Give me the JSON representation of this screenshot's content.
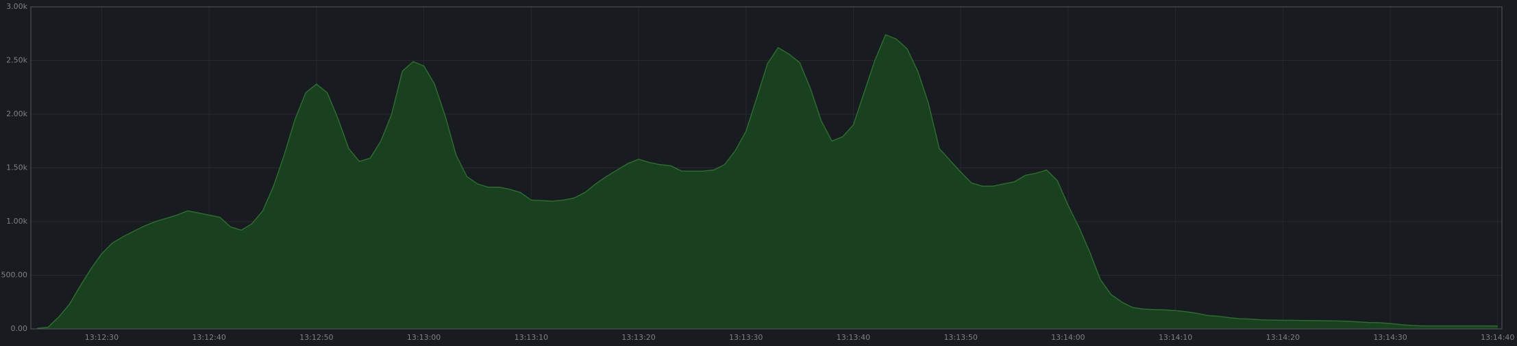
{
  "chart_data": {
    "type": "area",
    "x": [
      47544,
      47545,
      47546,
      47547,
      47548,
      47549,
      47550,
      47551,
      47552,
      47553,
      47554,
      47555,
      47556,
      47557,
      47558,
      47559,
      47560,
      47561,
      47562,
      47563,
      47564,
      47565,
      47566,
      47567,
      47568,
      47569,
      47570,
      47571,
      47572,
      47573,
      47574,
      47575,
      47576,
      47577,
      47578,
      47579,
      47580,
      47581,
      47582,
      47583,
      47584,
      47585,
      47586,
      47587,
      47588,
      47589,
      47590,
      47591,
      47592,
      47593,
      47594,
      47595,
      47596,
      47597,
      47598,
      47599,
      47600,
      47601,
      47602,
      47603,
      47604,
      47605,
      47606,
      47607,
      47608,
      47609,
      47610,
      47611,
      47612,
      47613,
      47614,
      47615,
      47616,
      47617,
      47618,
      47619,
      47620,
      47621,
      47622,
      47623,
      47624,
      47625,
      47626,
      47627,
      47628,
      47629,
      47630,
      47631,
      47632,
      47633,
      47634,
      47635,
      47636,
      47637,
      47638,
      47639,
      47640,
      47641,
      47642,
      47643,
      47644,
      47645,
      47646,
      47647,
      47648,
      47649,
      47650,
      47651,
      47652,
      47653,
      47654,
      47655,
      47656,
      47657,
      47658,
      47659,
      47660,
      47661,
      47662,
      47663,
      47664,
      47665,
      47666,
      47667,
      47668,
      47669,
      47670,
      47671,
      47672,
      47673,
      47674,
      47675,
      47676,
      47677,
      47678,
      47679,
      47680
    ],
    "values": [
      5,
      15,
      110,
      230,
      400,
      560,
      700,
      800,
      860,
      910,
      960,
      1000,
      1030,
      1060,
      1100,
      1080,
      1060,
      1040,
      950,
      920,
      980,
      1100,
      1330,
      1620,
      1950,
      2200,
      2280,
      2200,
      1960,
      1680,
      1560,
      1590,
      1750,
      2000,
      2400,
      2490,
      2450,
      2280,
      1980,
      1620,
      1420,
      1350,
      1320,
      1320,
      1300,
      1270,
      1200,
      1195,
      1190,
      1200,
      1220,
      1270,
      1350,
      1420,
      1480,
      1540,
      1580,
      1550,
      1530,
      1520,
      1470,
      1470,
      1470,
      1480,
      1530,
      1660,
      1840,
      2150,
      2470,
      2620,
      2560,
      2480,
      2240,
      1940,
      1750,
      1790,
      1900,
      2200,
      2500,
      2740,
      2700,
      2610,
      2400,
      2100,
      1680,
      1570,
      1460,
      1360,
      1330,
      1330,
      1350,
      1370,
      1430,
      1450,
      1480,
      1380,
      1150,
      950,
      720,
      460,
      320,
      250,
      200,
      185,
      180,
      178,
      170,
      160,
      145,
      125,
      118,
      105,
      95,
      92,
      85,
      82,
      80,
      80,
      78,
      77,
      76,
      74,
      72,
      65,
      60,
      58,
      50,
      40,
      32,
      28,
      28,
      28,
      28,
      28,
      28,
      28,
      26
    ],
    "color": "#19401f",
    "line_color": "#2e6b30",
    "xlim": [
      47543.4,
      47680.4
    ],
    "xticks": [
      {
        "value": 47550,
        "label": "13:12:30"
      },
      {
        "value": 47560,
        "label": "13:12:40"
      },
      {
        "value": 47570,
        "label": "13:12:50"
      },
      {
        "value": 47580,
        "label": "13:13:00"
      },
      {
        "value": 47590,
        "label": "13:13:10"
      },
      {
        "value": 47600,
        "label": "13:13:20"
      },
      {
        "value": 47610,
        "label": "13:13:30"
      },
      {
        "value": 47620,
        "label": "13:13:40"
      },
      {
        "value": 47630,
        "label": "13:13:50"
      },
      {
        "value": 47640,
        "label": "13:14:00"
      },
      {
        "value": 47650,
        "label": "13:14:10"
      },
      {
        "value": 47660,
        "label": "13:14:20"
      },
      {
        "value": 47670,
        "label": "13:14:30"
      },
      {
        "value": 47680,
        "label": "13:14:40"
      }
    ],
    "ylim": [
      0,
      3000
    ],
    "yticks": [
      {
        "value": 0,
        "label": "0.00"
      },
      {
        "value": 500,
        "label": "500.00"
      },
      {
        "value": 1000,
        "label": "1.00k"
      },
      {
        "value": 1500,
        "label": "1.50k"
      },
      {
        "value": 2000,
        "label": "2.00k"
      },
      {
        "value": 2500,
        "label": "2.50k"
      },
      {
        "value": 3000,
        "label": "3.00k"
      }
    ],
    "grid": true
  }
}
